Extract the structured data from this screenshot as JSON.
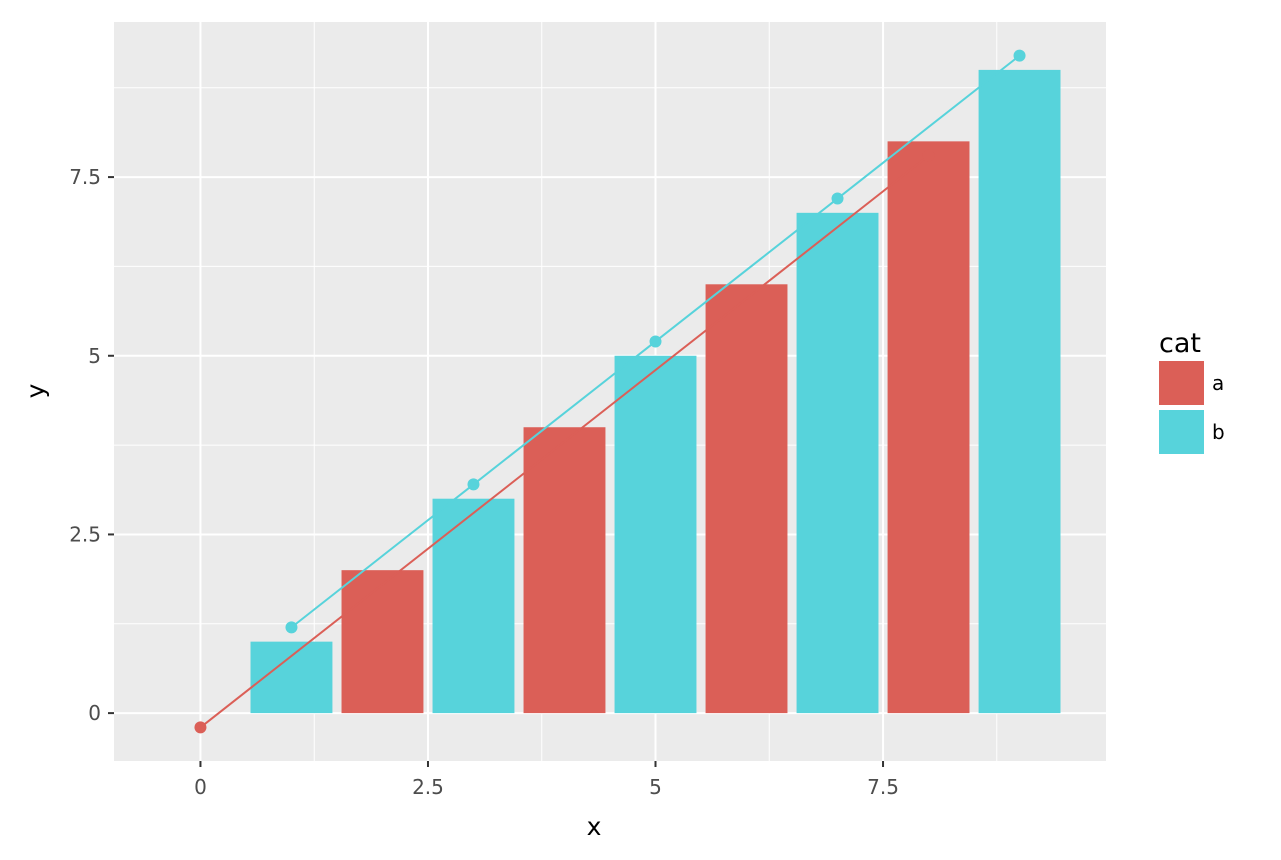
{
  "chart_data": {
    "type": "bar",
    "title": "",
    "xlabel": "x",
    "ylabel": "y",
    "xlim": [
      -0.95,
      9.95
    ],
    "ylim": [
      -0.67,
      9.67
    ],
    "x_ticks": [
      {
        "value": 0,
        "label": "0"
      },
      {
        "value": 2.5,
        "label": "2.5"
      },
      {
        "value": 5,
        "label": "5"
      },
      {
        "value": 7.5,
        "label": "7.5"
      }
    ],
    "y_ticks": [
      {
        "value": 0,
        "label": "0"
      },
      {
        "value": 2.5,
        "label": "2.5"
      },
      {
        "value": 5,
        "label": "5"
      },
      {
        "value": 7.5,
        "label": "7.5"
      }
    ],
    "grid": true,
    "bar_width": 0.9,
    "bars": [
      {
        "x": 1,
        "y": 1,
        "cat": "b"
      },
      {
        "x": 2,
        "y": 2,
        "cat": "a"
      },
      {
        "x": 3,
        "y": 3,
        "cat": "b"
      },
      {
        "x": 4,
        "y": 4,
        "cat": "a"
      },
      {
        "x": 5,
        "y": 5,
        "cat": "b"
      },
      {
        "x": 6,
        "y": 6,
        "cat": "a"
      },
      {
        "x": 7,
        "y": 7,
        "cat": "b"
      },
      {
        "x": 8,
        "y": 8,
        "cat": "a"
      },
      {
        "x": 9,
        "y": 9,
        "cat": "b"
      }
    ],
    "series": [
      {
        "name": "a",
        "color": "#db5f57",
        "points": [
          [
            0,
            -0.2
          ],
          [
            8,
            7.8
          ]
        ]
      },
      {
        "name": "b",
        "color": "#57d3db",
        "points": [
          [
            1,
            1.2
          ],
          [
            3,
            3.2
          ],
          [
            5,
            5.2
          ],
          [
            7,
            7.2
          ],
          [
            9,
            9.2
          ]
        ]
      }
    ],
    "legend": {
      "title": "cat",
      "position": "right",
      "entries": [
        {
          "label": "a",
          "color": "#db5f57"
        },
        {
          "label": "b",
          "color": "#57d3db"
        }
      ]
    },
    "colors": {
      "a": "#db5f57",
      "b": "#57d3db",
      "panel": "#ebebeb",
      "grid": "#ffffff"
    }
  }
}
